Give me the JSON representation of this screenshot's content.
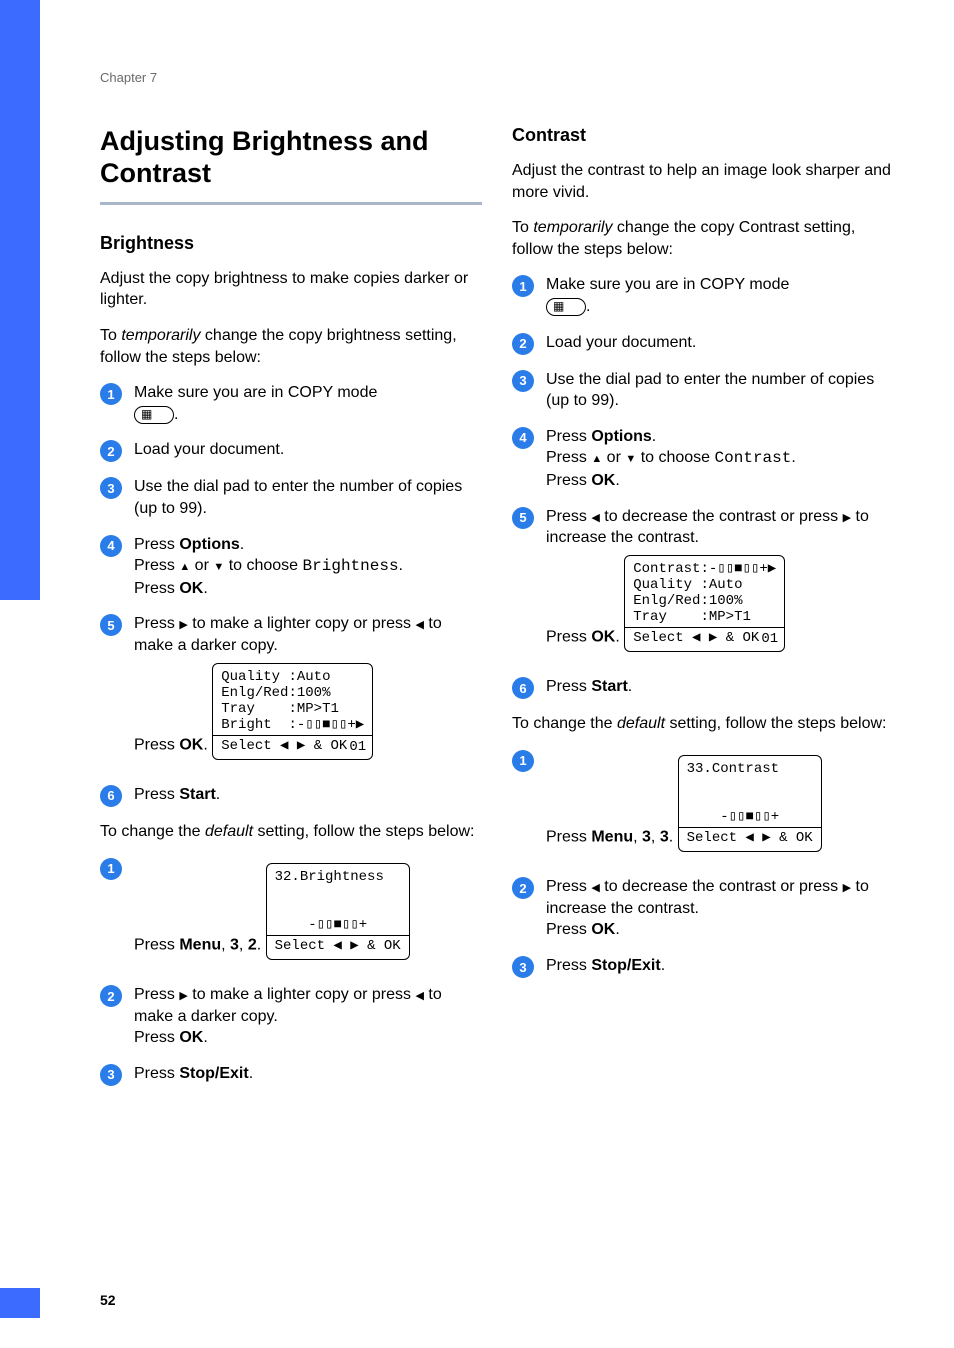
{
  "chapter_label": "Chapter 7",
  "page_number": "52",
  "colors": {
    "accent": "#3b6bff",
    "circle": "#2a7de9",
    "rule": "#aab6c9"
  },
  "title": "Adjusting Brightness and Contrast",
  "left": {
    "h2": "Brightness",
    "intro": "Adjust the copy brightness to make copies darker or lighter.",
    "temp_lead_pre": "To ",
    "temp_lead_em": "temporarily",
    "temp_lead_post": " change the copy brightness setting, follow the steps below:",
    "steps_temp": {
      "s1": "Make sure you are in COPY mode ",
      "s1_end": ".",
      "s2": "Load your document.",
      "s3": "Use the dial pad to enter the number of copies (up to 99).",
      "s4_a": "Press ",
      "s4_options": "Options",
      "s4_b": ".",
      "s4_c": "Press ",
      "s4_or": " or ",
      "s4_d": " to choose ",
      "s4_brightness": "Brightness",
      "s4_e": ".",
      "s4_f": "Press ",
      "s4_ok": "OK",
      "s4_g": ".",
      "s5_a": "Press ",
      "s5_b": " to make a lighter copy or press ",
      "s5_c": " to make a darker copy.",
      "s5_d": "Press ",
      "s5_ok": "OK",
      "s5_e": ".",
      "lcd1": "Quality :Auto\nEnlg/Red:100%\nTray    :MP>T1\nBright  :-▯▯■▯▯+▶",
      "lcd1_bottom": "Select ◀ ▶ & OK",
      "lcd1_counter": "01",
      "s6_a": "Press ",
      "s6_start": "Start",
      "s6_b": "."
    },
    "default_lead_pre": "To change the ",
    "default_lead_em": "default",
    "default_lead_post": " setting, follow the steps below:",
    "steps_default": {
      "s1_a": "Press ",
      "s1_menu": "Menu",
      "s1_b": ", ",
      "s1_k1": "3",
      "s1_c": ", ",
      "s1_k2": "2",
      "s1_d": ".",
      "lcd2_top": "32.Brightness",
      "lcd2_mid": "    -▯▯■▯▯+",
      "lcd2_bottom": "Select ◀ ▶ & OK",
      "s2_a": "Press ",
      "s2_b": " to make a lighter copy or press ",
      "s2_c": " to make a darker copy.",
      "s2_d": "Press ",
      "s2_ok": "OK",
      "s2_e": ".",
      "s3_a": "Press ",
      "s3_stop": "Stop/Exit",
      "s3_b": "."
    }
  },
  "right": {
    "h2": "Contrast",
    "intro": "Adjust the contrast to help an image look sharper and more vivid.",
    "temp_lead_pre": "To ",
    "temp_lead_em": "temporarily",
    "temp_lead_post": " change the copy Contrast setting, follow the steps below:",
    "steps_temp": {
      "s1": "Make sure you are in COPY mode ",
      "s1_end": ".",
      "s2": "Load your document.",
      "s3": "Use the dial pad to enter the number of copies (up to 99).",
      "s4_a": "Press ",
      "s4_options": "Options",
      "s4_b": ".",
      "s4_c": "Press ",
      "s4_or": " or ",
      "s4_d": " to choose ",
      "s4_contrast": "Contrast",
      "s4_e": ".",
      "s4_f": "Press ",
      "s4_ok": "OK",
      "s4_g": ".",
      "s5_a": "Press ",
      "s5_b": " to decrease the contrast or press ",
      "s5_c": " to increase the contrast.",
      "s5_d": "Press ",
      "s5_ok": "OK",
      "s5_e": ".",
      "lcd1": "Contrast:-▯▯■▯▯+▶\nQuality :Auto\nEnlg/Red:100%\nTray    :MP>T1",
      "lcd1_bottom": "Select ◀ ▶ & OK",
      "lcd1_counter": "01",
      "s6_a": "Press ",
      "s6_start": "Start",
      "s6_b": "."
    },
    "default_lead_pre": "To change the ",
    "default_lead_em": "default",
    "default_lead_post": " setting, follow the steps below:",
    "steps_default": {
      "s1_a": "Press ",
      "s1_menu": "Menu",
      "s1_b": ", ",
      "s1_k1": "3",
      "s1_c": ", ",
      "s1_k2": "3",
      "s1_d": ".",
      "lcd2_top": "33.Contrast",
      "lcd2_mid": "    -▯▯■▯▯+",
      "lcd2_bottom": "Select ◀ ▶ & OK",
      "s2_a": "Press ",
      "s2_b": " to decrease the contrast or press ",
      "s2_c": " to increase the contrast.",
      "s2_d": "Press ",
      "s2_ok": "OK",
      "s2_e": ".",
      "s3_a": "Press ",
      "s3_stop": "Stop/Exit",
      "s3_b": "."
    }
  }
}
